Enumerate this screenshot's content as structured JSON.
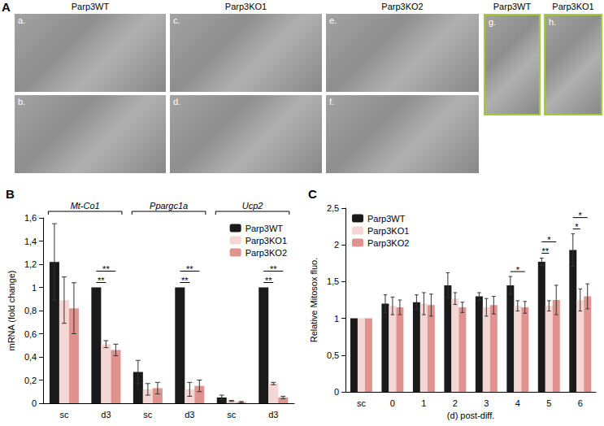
{
  "micrographs": {
    "panel": "A",
    "columns": [
      {
        "label": "Parp3WT",
        "images": [
          "a.",
          "b."
        ]
      },
      {
        "label": "Parp3KO1",
        "images": [
          "c.",
          "d."
        ]
      },
      {
        "label": "Parp3KO2",
        "images": [
          "e.",
          "f."
        ]
      },
      {
        "label": "Parp3WT",
        "images": [
          "g."
        ]
      },
      {
        "label": "Parp3KO1",
        "images": [
          "h."
        ]
      }
    ]
  },
  "chart_data": [
    {
      "type": "bar",
      "panel": "B",
      "y_label": "mRNA (fold change)",
      "categories": [
        "sc",
        "d3",
        "sc",
        "d3",
        "sc",
        "d3"
      ],
      "groups": [
        {
          "label": "Mt-Co1",
          "categories": [
            0,
            1
          ]
        },
        {
          "label": "Ppargc1a",
          "categories": [
            2,
            3
          ]
        },
        {
          "label": "Ucp2",
          "categories": [
            4,
            5
          ]
        }
      ],
      "series": [
        {
          "name": "Parp3WT",
          "color": "#1a1a1a",
          "values": [
            1.22,
            1.0,
            0.27,
            1.0,
            0.05,
            1.0
          ],
          "errors": [
            0.33,
            0,
            0.1,
            0,
            0.02,
            0
          ]
        },
        {
          "name": "Parp3KO1",
          "color": "#f4d6d4",
          "values": [
            0.89,
            0.51,
            0.12,
            0.12,
            0.02,
            0.17
          ],
          "errors": [
            0.2,
            0.03,
            0.05,
            0.06,
            0.005,
            0.01
          ]
        },
        {
          "name": "Parp3KO2",
          "color": "#e0928f",
          "values": [
            0.82,
            0.46,
            0.13,
            0.15,
            0.01,
            0.05
          ],
          "errors": [
            0.22,
            0.05,
            0.05,
            0.05,
            0.005,
            0.01
          ]
        }
      ],
      "annotations": [
        {
          "category": 1,
          "series": [
            0,
            1
          ],
          "text": "**"
        },
        {
          "category": 1,
          "series": [
            0,
            2
          ],
          "text": "**"
        },
        {
          "category": 3,
          "series": [
            0,
            1
          ],
          "text": "**"
        },
        {
          "category": 3,
          "series": [
            0,
            2
          ],
          "text": "**"
        },
        {
          "category": 5,
          "series": [
            0,
            1
          ],
          "text": "**"
        },
        {
          "category": 5,
          "series": [
            0,
            2
          ],
          "text": "**"
        }
      ],
      "ylim": [
        0,
        1.6
      ],
      "yticks": [
        0,
        {
          "value": 0.2,
          "label": "0,2"
        },
        {
          "value": 0.4,
          "label": "0,4"
        },
        {
          "value": 0.6,
          "label": "0,6"
        },
        {
          "value": 0.8,
          "label": "0,8"
        },
        1,
        {
          "value": 1.2,
          "label": "1,2"
        },
        {
          "value": 1.4,
          "label": "1,4"
        },
        {
          "value": 1.6,
          "label": "1,6"
        }
      ],
      "grid": false,
      "legend": "upper right"
    },
    {
      "type": "bar",
      "panel": "C",
      "y_label": "Relative Mitosox fluo.",
      "x_label": "(d) post-diff.",
      "categories": [
        "sc",
        "0",
        "1",
        "2",
        "3",
        "4",
        "5",
        "6"
      ],
      "series": [
        {
          "name": "Parp3WT",
          "color": "#1a1a1a",
          "values": [
            1,
            1.2,
            1.22,
            1.45,
            1.3,
            1.45,
            1.77,
            1.93
          ],
          "errors": [
            0,
            0.12,
            0.1,
            0.17,
            0.05,
            0.12,
            0.05,
            0.22
          ]
        },
        {
          "name": "Parp3KO1",
          "color": "#f4d6d4",
          "values": [
            1,
            1.17,
            1.2,
            1.27,
            1.15,
            1.17,
            1.17,
            1.25
          ],
          "errors": [
            0,
            0.12,
            0.15,
            0.08,
            0.12,
            0.07,
            0.07,
            0.15
          ]
        },
        {
          "name": "Parp3KO2",
          "color": "#e0928f",
          "values": [
            1,
            1.15,
            1.18,
            1.15,
            1.18,
            1.15,
            1.25,
            1.3
          ],
          "errors": [
            0,
            0.1,
            0.15,
            0.07,
            0.12,
            0.08,
            0.2,
            0.17
          ]
        }
      ],
      "annotations": [
        {
          "category": 5,
          "series": [
            0,
            2
          ],
          "text": "*"
        },
        {
          "category": 6,
          "series": [
            0,
            1
          ],
          "text": "**"
        },
        {
          "category": 6,
          "series": [
            0,
            2
          ],
          "text": "*"
        },
        {
          "category": 7,
          "series": [
            0,
            1
          ],
          "text": "*"
        },
        {
          "category": 7,
          "series": [
            0,
            2
          ],
          "text": "*"
        }
      ],
      "ylim": [
        0,
        2.5
      ],
      "yticks": [
        0,
        {
          "value": 0.5,
          "label": "0,5"
        },
        1,
        {
          "value": 1.5,
          "label": "1,5"
        },
        2,
        {
          "value": 2.5,
          "label": "2,5"
        }
      ],
      "grid": false,
      "legend": "upper left"
    }
  ]
}
